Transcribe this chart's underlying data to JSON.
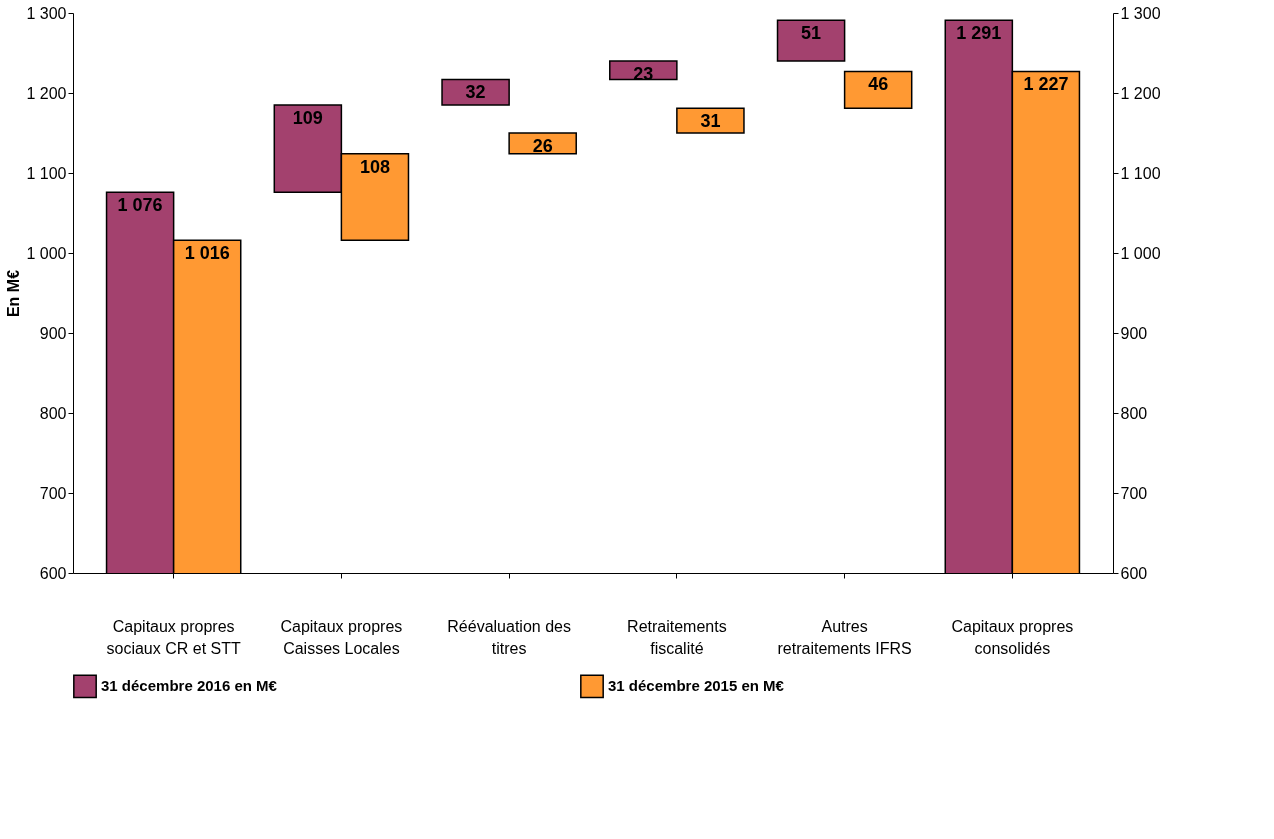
{
  "chart_data": {
    "type": "bar",
    "ylabel": "En M€",
    "categories": [
      "Capitaux propres sociaux CR et STT",
      "Capitaux propres Caisses Locales",
      "Réévaluation des titres",
      "Retraitements fiscalité",
      "Autres retraitements IFRS",
      "Capitaux propres consolidés"
    ],
    "series": [
      {
        "name": "31 décembre 2016 en M€",
        "color": "#a3416e",
        "values": [
          1076,
          109,
          32,
          23,
          51,
          1291
        ],
        "base": [
          null,
          1076,
          1185,
          1217,
          1240,
          null
        ]
      },
      {
        "name": "31 décembre 2015 en M€",
        "color": "#ff9933",
        "values": [
          1016,
          108,
          26,
          31,
          46,
          1227
        ],
        "base": [
          null,
          1016,
          1124,
          1150,
          1181,
          null
        ]
      }
    ],
    "ylim": [
      600,
      1300
    ],
    "yticks": [
      600,
      700,
      800,
      900,
      1000,
      1100,
      1200,
      1300
    ],
    "y2lim": [
      600,
      1300
    ],
    "y2ticks": [
      600,
      700,
      800,
      900,
      1000,
      1100,
      1200,
      1300
    ],
    "data_labels": true,
    "grid": false,
    "legend": "bottom"
  }
}
